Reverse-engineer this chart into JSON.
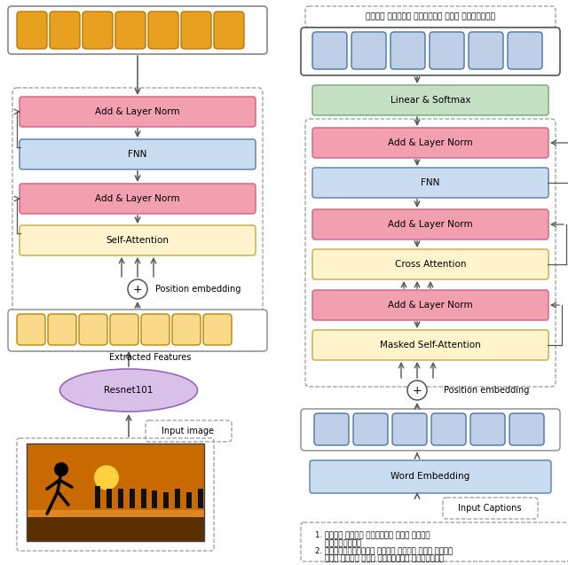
{
  "fig_width": 6.4,
  "fig_height": 6.37,
  "bg_color": "#ffffff",
  "colors": {
    "orange_fill": "#E8951A",
    "light_yellow": "#FFF4CC",
    "pink_fill": "#F2A0B0",
    "blue_fill": "#C9DCF0",
    "green_fill": "#C5DFC5",
    "purple_fill": "#D9C0E8",
    "white_fill": "#ffffff",
    "token_orange": "#E8A020",
    "token_blue": "#BFCFE8",
    "border_pink": "#D06080",
    "border_blue": "#5580AA",
    "border_yellow": "#C8A840",
    "border_green": "#70A870",
    "border_gray": "#888888"
  },
  "bangla_caption_top": "একজন পুকুর পানিতে লাফ দিয়েছে",
  "bangla_caption1": "1. একজন বালক পানিতে লাফ ঝাঁপ",
  "bangla_caption1b": "    দিয়েছে।",
  "bangla_caption2": "2. সূর্যাস্তের সময় একজন লোক নদীর",
  "bangla_caption2b": "    পাড় থেকে লাফ দিয়েছে পানিতে।"
}
